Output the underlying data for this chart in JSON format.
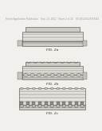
{
  "bg_color": "#f2f0ec",
  "header_text": "Patent Application Publication    Sep. 13, 2012   Sheet 2 of 14    US 2012/0228760 A1",
  "header_fontsize": 2.0,
  "fig_labels": [
    "FIG. 2a",
    "FIG. 2b",
    "FIG. 2c"
  ],
  "fig_label_fontsize": 3.2,
  "line_color": "#444444",
  "fill_light": "#d0ccc4",
  "fill_mid": "#c8c4bc",
  "fill_lighter": "#e4e2dc",
  "fill_dark": "#909088",
  "fill_white": "#f8f8f6"
}
